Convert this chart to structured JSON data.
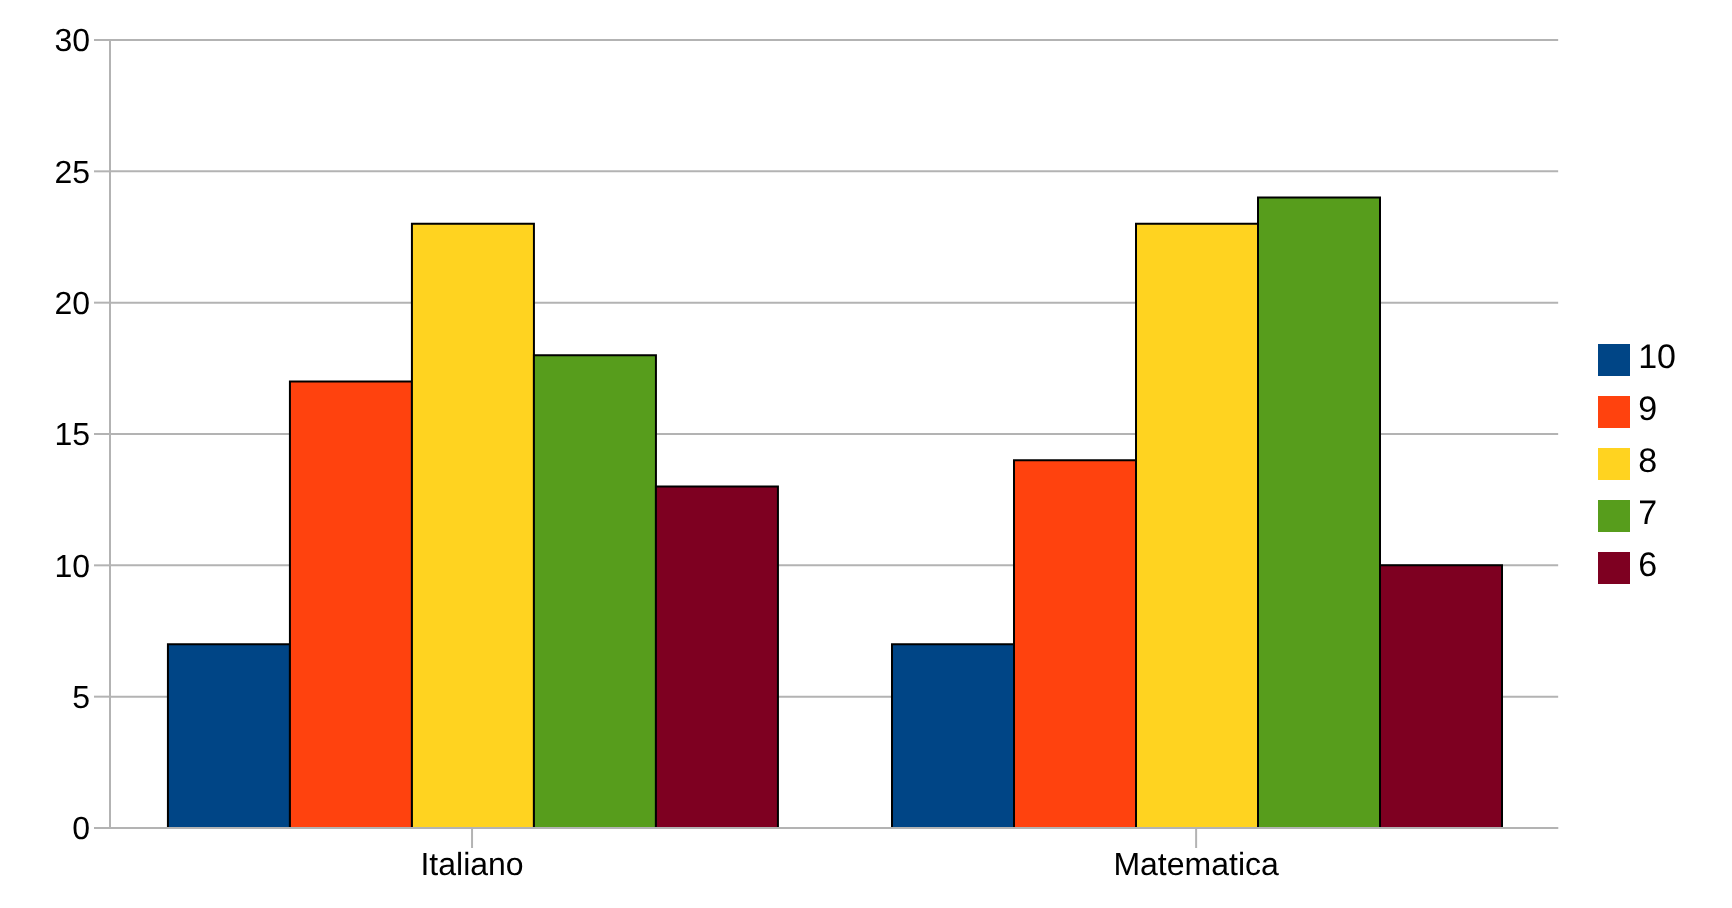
{
  "chart_data": {
    "type": "bar",
    "categories": [
      "Italiano",
      "Matematica"
    ],
    "series": [
      {
        "name": "10",
        "color": "#004586",
        "values": [
          7,
          7
        ]
      },
      {
        "name": "9",
        "color": "#ff420e",
        "values": [
          17,
          14
        ]
      },
      {
        "name": "8",
        "color": "#ffd320",
        "values": [
          23,
          23
        ]
      },
      {
        "name": "7",
        "color": "#579d1c",
        "values": [
          18,
          24
        ]
      },
      {
        "name": "6",
        "color": "#7e0021",
        "values": [
          13,
          10
        ]
      }
    ],
    "ylim": [
      0,
      30
    ],
    "yticks": [
      0,
      5,
      10,
      15,
      20,
      25,
      30
    ],
    "grid": "y",
    "legend": "right"
  }
}
